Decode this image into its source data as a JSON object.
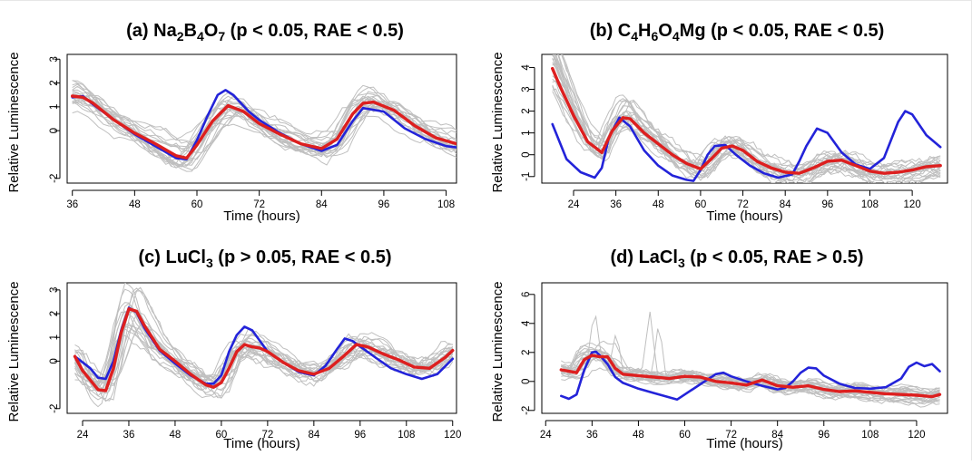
{
  "colors": {
    "background": "#ffffff",
    "replicates": "#bfbfbf",
    "blue_series": "#2323d9",
    "red_series": "#dd1f1f",
    "axis": "#000000"
  },
  "chart_data": [
    {
      "type": "line",
      "title": "(a) Na2B4O7 (p < 0.05, RAE < 0.5)",
      "title_parts": [
        {
          "t": "(a) Na"
        },
        {
          "t": "2",
          "sub": true
        },
        {
          "t": "B"
        },
        {
          "t": "4",
          "sub": true
        },
        {
          "t": "O"
        },
        {
          "t": "7",
          "sub": true
        },
        {
          "t": " (p < 0.05, RAE < 0.5)"
        }
      ],
      "xlabel": "Time (hours)",
      "ylabel": "Relative Luminescence",
      "xticks": [
        36,
        48,
        60,
        72,
        84,
        96,
        108
      ],
      "yticks": [
        -2,
        0,
        1,
        2,
        3
      ],
      "xlim": [
        35,
        110
      ],
      "ylim": [
        -2.2,
        3.2
      ],
      "series": [
        {
          "color": "blue",
          "x": [
            36,
            38,
            40,
            44,
            48,
            52,
            56,
            58,
            60,
            62,
            64,
            65.5,
            67,
            70,
            72,
            76,
            80,
            84,
            87,
            90,
            92,
            96,
            100,
            104,
            108,
            110
          ],
          "y": [
            1.4,
            1.45,
            1.1,
            0.45,
            -0.15,
            -0.65,
            -1.15,
            -1.2,
            -0.4,
            0.6,
            1.5,
            1.7,
            1.5,
            0.8,
            0.45,
            -0.1,
            -0.55,
            -0.85,
            -0.6,
            0.4,
            0.95,
            0.8,
            0.1,
            -0.35,
            -0.65,
            -0.7
          ]
        },
        {
          "color": "red",
          "x": [
            36,
            38,
            40,
            44,
            48,
            52,
            56,
            58,
            60,
            63,
            66,
            69,
            72,
            76,
            80,
            84,
            87,
            90,
            92,
            94,
            98,
            102,
            106,
            110
          ],
          "y": [
            1.45,
            1.4,
            1.15,
            0.45,
            -0.1,
            -0.55,
            -1.05,
            -1.15,
            -0.6,
            0.4,
            1.05,
            0.8,
            0.3,
            -0.15,
            -0.55,
            -0.75,
            -0.35,
            0.7,
            1.15,
            1.2,
            0.85,
            0.2,
            -0.3,
            -0.55
          ]
        }
      ]
    },
    {
      "type": "line",
      "title": "(b) C4H6O4Mg (p < 0.05, RAE < 0.5)",
      "title_parts": [
        {
          "t": "(b) C"
        },
        {
          "t": "4",
          "sub": true
        },
        {
          "t": "H"
        },
        {
          "t": "6",
          "sub": true
        },
        {
          "t": "O"
        },
        {
          "t": "4",
          "sub": true
        },
        {
          "t": "Mg (p < 0.05, RAE < 0.5)"
        }
      ],
      "xlabel": "Time (hours)",
      "ylabel": "Relative Luminescence",
      "xticks": [
        24,
        36,
        48,
        60,
        72,
        84,
        96,
        108,
        120
      ],
      "yticks": [
        -1,
        0,
        1,
        2,
        3,
        4
      ],
      "xlim": [
        15,
        130
      ],
      "ylim": [
        -1.3,
        4.6
      ],
      "series": [
        {
          "color": "blue",
          "x": [
            18,
            22,
            26,
            30,
            32,
            34,
            37,
            40,
            44,
            48,
            52,
            56,
            58,
            60,
            62,
            64,
            67,
            70,
            74,
            78,
            82,
            86,
            88,
            90,
            93,
            96,
            100,
            104,
            108,
            112,
            116,
            118,
            120,
            124,
            128
          ],
          "y": [
            1.4,
            -0.2,
            -0.8,
            -1.05,
            -0.6,
            0.8,
            1.7,
            1.3,
            0.2,
            -0.5,
            -0.95,
            -1.15,
            -1.2,
            -0.7,
            0.0,
            0.4,
            0.45,
            0.0,
            -0.5,
            -0.85,
            -1.05,
            -0.9,
            -0.3,
            0.4,
            1.2,
            1.0,
            0.1,
            -0.45,
            -0.65,
            -0.15,
            1.5,
            2.0,
            1.85,
            0.9,
            0.35
          ]
        },
        {
          "color": "red",
          "x": [
            18,
            20,
            24,
            28,
            32,
            35,
            38,
            40,
            44,
            48,
            52,
            56,
            60,
            63,
            66,
            69,
            72,
            76,
            80,
            84,
            88,
            92,
            96,
            100,
            104,
            108,
            112,
            116,
            120,
            124,
            128
          ],
          "y": [
            3.95,
            3.2,
            1.8,
            0.6,
            0.1,
            1.1,
            1.7,
            1.65,
            1.0,
            0.5,
            0.0,
            -0.4,
            -0.65,
            -0.2,
            0.3,
            0.4,
            0.2,
            -0.3,
            -0.6,
            -0.8,
            -0.85,
            -0.6,
            -0.3,
            -0.25,
            -0.5,
            -0.75,
            -0.85,
            -0.8,
            -0.7,
            -0.55,
            -0.5
          ]
        }
      ]
    },
    {
      "type": "line",
      "title": "(c) LuCl3 (p > 0.05, RAE < 0.5)",
      "title_parts": [
        {
          "t": "(c) LuCl"
        },
        {
          "t": "3",
          "sub": true
        },
        {
          "t": " (p > 0.05, RAE < 0.5)"
        }
      ],
      "xlabel": "Time (hours)",
      "ylabel": "Relative Luminescence",
      "xticks": [
        24,
        36,
        48,
        60,
        72,
        84,
        96,
        108,
        120
      ],
      "yticks": [
        -2,
        0,
        1,
        2,
        3
      ],
      "xlim": [
        20,
        121
      ],
      "ylim": [
        -2.2,
        3.3
      ],
      "series": [
        {
          "color": "blue",
          "x": [
            22,
            24,
            26,
            28,
            30,
            32,
            34,
            36,
            38,
            40,
            44,
            48,
            52,
            56,
            58,
            60,
            62,
            64,
            66,
            68,
            70,
            72,
            76,
            80,
            84,
            87,
            90,
            92,
            94,
            97,
            100,
            104,
            108,
            112,
            116,
            120
          ],
          "y": [
            0.2,
            -0.05,
            -0.3,
            -0.7,
            -0.75,
            0.0,
            1.3,
            2.25,
            2.05,
            1.4,
            0.45,
            -0.1,
            -0.6,
            -0.95,
            -0.95,
            -0.6,
            0.4,
            1.1,
            1.45,
            1.3,
            0.85,
            0.4,
            -0.05,
            -0.45,
            -0.6,
            -0.2,
            0.5,
            0.95,
            0.85,
            0.5,
            0.15,
            -0.3,
            -0.55,
            -0.75,
            -0.55,
            0.1
          ]
        },
        {
          "color": "red",
          "x": [
            22,
            24,
            26,
            28,
            30,
            32,
            34,
            36,
            38,
            40,
            44,
            48,
            52,
            56,
            58,
            60,
            62,
            64,
            66,
            68,
            70,
            72,
            76,
            80,
            84,
            88,
            92,
            95,
            98,
            102,
            106,
            110,
            114,
            118,
            120
          ],
          "y": [
            0.2,
            -0.4,
            -0.8,
            -1.2,
            -1.25,
            -0.3,
            1.2,
            2.2,
            2.1,
            1.5,
            0.5,
            0.0,
            -0.55,
            -1.0,
            -1.1,
            -0.9,
            -0.3,
            0.4,
            0.7,
            0.6,
            0.55,
            0.4,
            -0.05,
            -0.4,
            -0.55,
            -0.3,
            0.25,
            0.7,
            0.6,
            0.3,
            0.05,
            -0.25,
            -0.3,
            0.15,
            0.45
          ]
        }
      ]
    },
    {
      "type": "line",
      "title": "(d) LaCl3 (p < 0.05, RAE > 0.5)",
      "title_parts": [
        {
          "t": "(d) LaCl"
        },
        {
          "t": "3",
          "sub": true
        },
        {
          "t": " (p < 0.05, RAE > 0.5)"
        }
      ],
      "xlabel": "Time (hours)",
      "ylabel": "Relative Luminescence",
      "xticks": [
        24,
        36,
        48,
        60,
        72,
        84,
        96,
        108,
        120
      ],
      "yticks": [
        -2,
        0,
        2,
        4,
        6
      ],
      "xlim": [
        23,
        128
      ],
      "ylim": [
        -2.2,
        6.8
      ],
      "series": [
        {
          "color": "blue",
          "x": [
            28,
            30,
            32,
            34,
            36,
            37,
            38,
            40,
            42,
            44,
            48,
            52,
            56,
            58,
            60,
            64,
            68,
            70,
            72,
            76,
            80,
            84,
            86,
            88,
            90,
            92,
            94,
            96,
            100,
            104,
            108,
            112,
            116,
            118,
            120,
            122,
            124,
            126
          ],
          "y": [
            -1.0,
            -1.2,
            -0.9,
            0.8,
            2.0,
            2.05,
            1.8,
            1.2,
            0.3,
            -0.1,
            -0.5,
            -0.8,
            -1.1,
            -1.25,
            -0.9,
            -0.2,
            0.5,
            0.6,
            0.35,
            0.0,
            -0.3,
            -0.55,
            -0.45,
            0.0,
            0.6,
            0.95,
            0.9,
            0.4,
            -0.15,
            -0.45,
            -0.5,
            -0.4,
            0.2,
            1.0,
            1.3,
            1.05,
            1.2,
            0.7
          ]
        },
        {
          "color": "red",
          "x": [
            28,
            30,
            32,
            34,
            36,
            38,
            40,
            42,
            44,
            48,
            52,
            56,
            60,
            64,
            68,
            72,
            76,
            80,
            84,
            88,
            92,
            96,
            100,
            104,
            108,
            112,
            116,
            120,
            124,
            126
          ],
          "y": [
            0.8,
            0.7,
            0.6,
            1.5,
            1.8,
            1.7,
            1.7,
            0.9,
            0.5,
            0.4,
            0.3,
            0.2,
            0.35,
            0.3,
            0.0,
            -0.1,
            -0.25,
            0.1,
            -0.3,
            -0.4,
            -0.3,
            -0.55,
            -0.7,
            -0.65,
            -0.75,
            -0.85,
            -0.9,
            -0.95,
            -1.05,
            -0.9
          ]
        }
      ]
    }
  ]
}
